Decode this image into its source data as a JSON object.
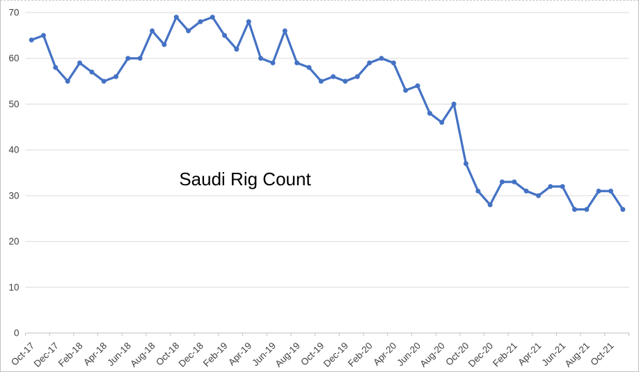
{
  "chart_data": {
    "type": "line",
    "title": "Saudi Rig Count",
    "categories": [
      "Oct-17",
      "Nov-17",
      "Dec-17",
      "Jan-18",
      "Feb-18",
      "Mar-18",
      "Apr-18",
      "May-18",
      "Jun-18",
      "Jul-18",
      "Aug-18",
      "Sep-18",
      "Oct-18",
      "Nov-18",
      "Dec-18",
      "Jan-19",
      "Feb-19",
      "Mar-19",
      "Apr-19",
      "May-19",
      "Jun-19",
      "Jul-19",
      "Aug-19",
      "Sep-19",
      "Oct-19",
      "Nov-19",
      "Dec-19",
      "Jan-20",
      "Feb-20",
      "Mar-20",
      "Apr-20",
      "May-20",
      "Jun-20",
      "Jul-20",
      "Aug-20",
      "Sep-20",
      "Oct-20",
      "Nov-20",
      "Dec-20",
      "Jan-21",
      "Feb-21",
      "Mar-21",
      "Apr-21",
      "May-21",
      "Jun-21",
      "Jul-21",
      "Aug-21",
      "Sep-21",
      "Oct-21",
      "Nov-21"
    ],
    "values": [
      64,
      65,
      58,
      55,
      59,
      57,
      55,
      56,
      60,
      60,
      66,
      63,
      69,
      66,
      68,
      69,
      65,
      62,
      68,
      60,
      59,
      66,
      59,
      58,
      55,
      56,
      55,
      56,
      59,
      60,
      59,
      53,
      54,
      48,
      46,
      50,
      37,
      31,
      28,
      33,
      33,
      31,
      30,
      32,
      32,
      27,
      27,
      31,
      31,
      27
    ],
    "x_label_every": 2,
    "x_tick_labels": [
      "Oct-17",
      "Dec-17",
      "Feb-18",
      "Apr-18",
      "Jun-18",
      "Aug-18",
      "Oct-18",
      "Dec-18",
      "Feb-19",
      "Apr-19",
      "Jun-19",
      "Aug-19",
      "Oct-19",
      "Dec-19",
      "Feb-20",
      "Apr-20",
      "Jun-20",
      "Aug-20",
      "Oct-20",
      "Dec-20",
      "Feb-21",
      "Apr-21",
      "Jun-21",
      "Aug-21",
      "Oct-21"
    ],
    "y_ticks": [
      0,
      10,
      20,
      30,
      40,
      50,
      60,
      70
    ],
    "ylim": [
      0,
      70
    ],
    "xlabel": "",
    "ylabel": "",
    "grid": "horizontal",
    "legend": "none",
    "marker": "circle",
    "series_color": "#4472C4",
    "gridline_color": "#D9D9D9",
    "axis_line_color": "#BFBFBF",
    "axis_label_color": "#404040",
    "title_color": "#000000"
  }
}
